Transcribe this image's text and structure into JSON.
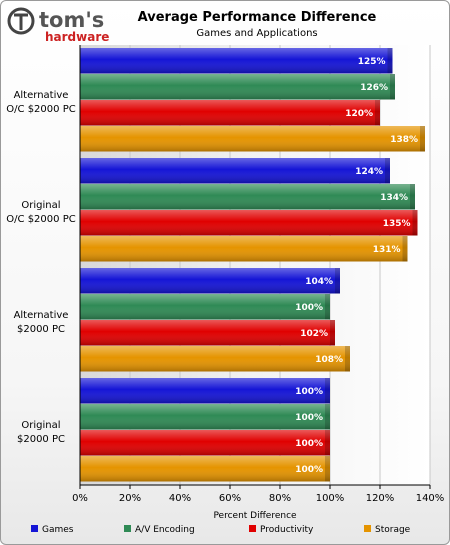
{
  "logo": {
    "line1": "tom's",
    "line2": "hardware"
  },
  "chart_data": {
    "type": "bar",
    "orientation": "horizontal",
    "title": "Average Performance Difference",
    "subtitle": "Games and Applications",
    "xlabel": "Percent Difference",
    "xlim": [
      0,
      140
    ],
    "xticks": [
      0,
      20,
      40,
      60,
      80,
      100,
      120,
      140
    ],
    "xtick_suffix": "%",
    "categories": [
      [
        "Alternative",
        "O/C $2000 PC"
      ],
      [
        "Original",
        "O/C $2000 PC"
      ],
      [
        "Alternative",
        "$2000 PC"
      ],
      [
        "Original",
        "$2000 PC"
      ]
    ],
    "series": [
      {
        "name": "Games",
        "color": "#1515d6",
        "values": [
          125,
          124,
          104,
          100
        ]
      },
      {
        "name": "A/V Encoding",
        "color": "#2f8a55",
        "values": [
          126,
          134,
          100,
          100
        ]
      },
      {
        "name": "Productivity",
        "color": "#e00000",
        "values": [
          120,
          135,
          102,
          100
        ]
      },
      {
        "name": "Storage",
        "color": "#e59400",
        "values": [
          138,
          131,
          108,
          100
        ]
      }
    ],
    "value_suffix": "%",
    "grid": true,
    "legend_position": "bottom"
  }
}
